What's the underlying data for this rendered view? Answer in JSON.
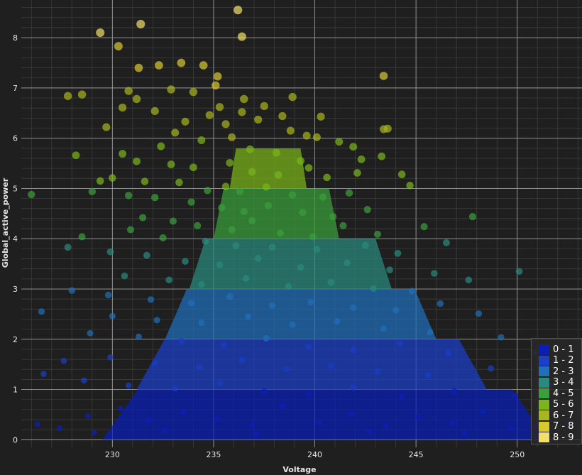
{
  "chart_data": {
    "type": "scatter",
    "title": "",
    "xlabel": "Voltage",
    "ylabel": "Global_active_power",
    "xlim": [
      225.5,
      253.2
    ],
    "ylim": [
      -0.15,
      8.75
    ],
    "x_ticks": [
      "230",
      "235",
      "240",
      "245",
      "250"
    ],
    "y_ticks": [
      "0",
      "1",
      "2",
      "3",
      "4",
      "5",
      "6",
      "7",
      "8"
    ],
    "x_tick_values": [
      230,
      235,
      240,
      245,
      250
    ],
    "y_tick_values": [
      0,
      1,
      2,
      3,
      4,
      5,
      6,
      7,
      8
    ],
    "grid": true,
    "legend_position": "bottom-right",
    "colors": {
      "background": "#1f1f1f",
      "grid_major": "#9a9a9a",
      "grid_minor": "#3c3c3c",
      "axis_text": "#e6e6e6"
    },
    "bins": [
      {
        "label": "0 - 1",
        "range": [
          0,
          1
        ],
        "color": "#0a1fb8"
      },
      {
        "label": "1 - 2",
        "range": [
          1,
          2
        ],
        "color": "#1a3fc8"
      },
      {
        "label": "2 - 3",
        "range": [
          2,
          3
        ],
        "color": "#1f6fba"
      },
      {
        "label": "3 - 4",
        "range": [
          3,
          4
        ],
        "color": "#2a8a7e"
      },
      {
        "label": "4 - 5",
        "range": [
          4,
          5
        ],
        "color": "#3aa03a"
      },
      {
        "label": "5 - 6",
        "range": [
          5,
          6
        ],
        "color": "#7ab61a"
      },
      {
        "label": "6 - 7",
        "range": [
          6,
          7
        ],
        "color": "#a9b51c"
      },
      {
        "label": "7 - 8",
        "range": [
          7,
          8
        ],
        "color": "#d8c830"
      },
      {
        "label": "8 - 9",
        "range": [
          8,
          9
        ],
        "color": "#f2df6a"
      }
    ],
    "points": [
      [
        236.2,
        8.55
      ],
      [
        229.4,
        8.1
      ],
      [
        231.4,
        8.27
      ],
      [
        236.4,
        8.02
      ],
      [
        230.3,
        7.83
      ],
      [
        232.3,
        7.45
      ],
      [
        233.4,
        7.5
      ],
      [
        234.5,
        7.45
      ],
      [
        231.3,
        7.4
      ],
      [
        235.2,
        7.23
      ],
      [
        243.4,
        7.24
      ],
      [
        235.1,
        7.05
      ],
      [
        232.9,
        6.97
      ],
      [
        234.0,
        6.92
      ],
      [
        230.8,
        6.94
      ],
      [
        227.8,
        6.84
      ],
      [
        228.5,
        6.87
      ],
      [
        231.2,
        6.78
      ],
      [
        236.5,
        6.78
      ],
      [
        238.9,
        6.82
      ],
      [
        230.5,
        6.61
      ],
      [
        232.1,
        6.54
      ],
      [
        235.3,
        6.62
      ],
      [
        237.5,
        6.64
      ],
      [
        238.4,
        6.44
      ],
      [
        240.3,
        6.43
      ],
      [
        236.4,
        6.52
      ],
      [
        234.8,
        6.46
      ],
      [
        243.4,
        6.18
      ],
      [
        243.6,
        6.19
      ],
      [
        229.7,
        6.22
      ],
      [
        233.6,
        6.33
      ],
      [
        235.6,
        6.28
      ],
      [
        237.2,
        6.37
      ],
      [
        238.8,
        6.15
      ],
      [
        239.6,
        6.05
      ],
      [
        240.1,
        6.02
      ],
      [
        241.2,
        5.93
      ],
      [
        232.4,
        5.84
      ],
      [
        233.1,
        6.11
      ],
      [
        234.4,
        5.96
      ],
      [
        235.9,
        6.02
      ],
      [
        236.8,
        5.78
      ],
      [
        238.1,
        5.71
      ],
      [
        239.3,
        5.55
      ],
      [
        241.9,
        5.83
      ],
      [
        242.3,
        5.58
      ],
      [
        243.3,
        5.64
      ],
      [
        230.5,
        5.69
      ],
      [
        228.2,
        5.66
      ],
      [
        231.2,
        5.54
      ],
      [
        232.9,
        5.48
      ],
      [
        234.0,
        5.42
      ],
      [
        235.8,
        5.51
      ],
      [
        236.9,
        5.33
      ],
      [
        238.2,
        5.27
      ],
      [
        239.7,
        5.41
      ],
      [
        240.6,
        5.22
      ],
      [
        242.1,
        5.31
      ],
      [
        244.3,
        5.28
      ],
      [
        244.7,
        5.06
      ],
      [
        229.4,
        5.15
      ],
      [
        230.0,
        5.21
      ],
      [
        231.6,
        5.14
      ],
      [
        233.3,
        5.12
      ],
      [
        234.7,
        4.96
      ],
      [
        235.6,
        5.04
      ],
      [
        236.3,
        4.94
      ],
      [
        237.6,
        5.03
      ],
      [
        238.9,
        4.87
      ],
      [
        240.4,
        4.83
      ],
      [
        241.7,
        4.91
      ],
      [
        226.0,
        4.88
      ],
      [
        229.0,
        4.94
      ],
      [
        230.8,
        4.86
      ],
      [
        232.1,
        4.82
      ],
      [
        233.9,
        4.73
      ],
      [
        235.4,
        4.62
      ],
      [
        236.5,
        4.54
      ],
      [
        237.7,
        4.66
      ],
      [
        239.4,
        4.52
      ],
      [
        240.9,
        4.44
      ],
      [
        242.6,
        4.58
      ],
      [
        247.8,
        4.44
      ],
      [
        231.5,
        4.42
      ],
      [
        233.0,
        4.35
      ],
      [
        234.2,
        4.26
      ],
      [
        235.9,
        4.18
      ],
      [
        236.9,
        4.36
      ],
      [
        238.3,
        4.11
      ],
      [
        239.9,
        4.04
      ],
      [
        241.4,
        4.26
      ],
      [
        243.1,
        4.09
      ],
      [
        245.4,
        4.24
      ],
      [
        230.9,
        4.18
      ],
      [
        228.5,
        4.04
      ],
      [
        232.5,
        4.02
      ],
      [
        234.6,
        3.95
      ],
      [
        236.1,
        3.86
      ],
      [
        237.9,
        3.83
      ],
      [
        240.1,
        3.79
      ],
      [
        242.5,
        3.87
      ],
      [
        244.1,
        3.71
      ],
      [
        246.5,
        3.92
      ],
      [
        229.9,
        3.74
      ],
      [
        227.8,
        3.83
      ],
      [
        231.7,
        3.67
      ],
      [
        233.6,
        3.55
      ],
      [
        235.3,
        3.48
      ],
      [
        237.2,
        3.61
      ],
      [
        239.3,
        3.43
      ],
      [
        241.6,
        3.52
      ],
      [
        243.7,
        3.38
      ],
      [
        245.9,
        3.31
      ],
      [
        250.1,
        3.35
      ],
      [
        230.6,
        3.26
      ],
      [
        232.8,
        3.18
      ],
      [
        234.4,
        3.09
      ],
      [
        236.6,
        3.21
      ],
      [
        238.7,
        3.05
      ],
      [
        240.8,
        3.13
      ],
      [
        242.9,
        3.01
      ],
      [
        244.8,
        2.96
      ],
      [
        247.6,
        3.18
      ],
      [
        228.0,
        2.97
      ],
      [
        229.8,
        2.88
      ],
      [
        231.9,
        2.79
      ],
      [
        233.9,
        2.72
      ],
      [
        235.8,
        2.85
      ],
      [
        237.9,
        2.67
      ],
      [
        239.8,
        2.74
      ],
      [
        241.9,
        2.63
      ],
      [
        244.0,
        2.58
      ],
      [
        246.2,
        2.71
      ],
      [
        248.1,
        2.51
      ],
      [
        226.5,
        2.55
      ],
      [
        230.0,
        2.46
      ],
      [
        232.2,
        2.38
      ],
      [
        234.4,
        2.33
      ],
      [
        236.7,
        2.45
      ],
      [
        238.9,
        2.29
      ],
      [
        241.1,
        2.36
      ],
      [
        243.4,
        2.21
      ],
      [
        245.7,
        2.14
      ],
      [
        249.2,
        2.04
      ],
      [
        228.9,
        2.12
      ],
      [
        231.3,
        2.05
      ],
      [
        233.4,
        1.96
      ],
      [
        235.5,
        1.88
      ],
      [
        237.6,
        2.02
      ],
      [
        239.7,
        1.85
      ],
      [
        241.9,
        1.79
      ],
      [
        244.2,
        1.91
      ],
      [
        246.6,
        1.72
      ],
      [
        250.9,
        1.73
      ],
      [
        227.6,
        1.57
      ],
      [
        229.9,
        1.64
      ],
      [
        232.1,
        1.53
      ],
      [
        234.3,
        1.45
      ],
      [
        236.4,
        1.58
      ],
      [
        238.6,
        1.41
      ],
      [
        240.8,
        1.48
      ],
      [
        243.1,
        1.36
      ],
      [
        245.6,
        1.29
      ],
      [
        248.7,
        1.42
      ],
      [
        226.6,
        1.31
      ],
      [
        228.6,
        1.18
      ],
      [
        230.8,
        1.08
      ],
      [
        233.1,
        1.02
      ],
      [
        235.3,
        1.12
      ],
      [
        237.5,
        0.96
      ],
      [
        239.7,
        0.91
      ],
      [
        241.9,
        1.04
      ],
      [
        244.3,
        0.86
      ],
      [
        246.9,
        0.97
      ],
      [
        249.9,
        0.88
      ],
      [
        251.6,
        1.09
      ],
      [
        226.3,
        0.31
      ],
      [
        227.4,
        0.23
      ],
      [
        228.8,
        0.47
      ],
      [
        230.4,
        0.62
      ],
      [
        231.8,
        0.38
      ],
      [
        233.5,
        0.55
      ],
      [
        235.2,
        0.42
      ],
      [
        236.9,
        0.29
      ],
      [
        238.4,
        0.68
      ],
      [
        240.2,
        0.35
      ],
      [
        241.8,
        0.51
      ],
      [
        243.5,
        0.27
      ],
      [
        245.1,
        0.46
      ],
      [
        246.8,
        0.33
      ],
      [
        248.3,
        0.57
      ],
      [
        249.7,
        0.24
      ],
      [
        251.2,
        0.43
      ],
      [
        252.5,
        0.31
      ],
      [
        229.1,
        0.14
      ],
      [
        232.6,
        0.19
      ],
      [
        237.1,
        0.12
      ],
      [
        242.7,
        0.16
      ],
      [
        247.4,
        0.13
      ]
    ]
  }
}
